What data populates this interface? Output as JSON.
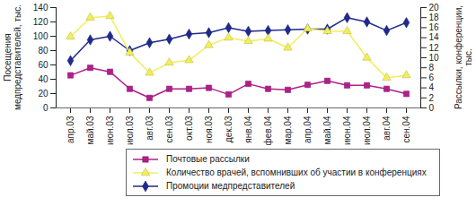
{
  "chart_data": {
    "type": "line",
    "categories": [
      "апр.03",
      "май.03",
      "июн.03",
      "июл.03",
      "авг.03",
      "сен.03",
      "окт.03",
      "ноя.03",
      "дек.03",
      "янв.04",
      "фев.04",
      "мар.04",
      "апр.04",
      "май.04",
      "июн.04",
      "июл.04",
      "авг.04",
      "сен.04"
    ],
    "ylabel": "Посещения медпредставителей, тыс.",
    "y2label": "Рассылки, конференции, тыс.",
    "ylim": [
      0,
      140
    ],
    "yticks": [
      0,
      20,
      40,
      60,
      80,
      100,
      120,
      140
    ],
    "y2lim": [
      0,
      20
    ],
    "y2ticks": [
      0,
      2,
      4,
      6,
      8,
      10,
      12,
      14,
      16,
      18,
      20
    ],
    "legend": "bottom",
    "series": [
      {
        "name": "Почтовые рассылки",
        "color": "#b0208a",
        "marker": "square",
        "axis": "y2",
        "values": [
          6.5,
          8.0,
          7.2,
          3.8,
          2.0,
          3.8,
          3.8,
          4.0,
          2.7,
          4.8,
          3.8,
          3.6,
          4.6,
          5.4,
          4.5,
          4.5,
          3.8,
          2.8
        ]
      },
      {
        "name": "Количество врачей, вспомнивших об участии в конференциях",
        "color": "#f2ee5c",
        "marker": "triangle",
        "axis": "y2",
        "values": [
          14.2,
          18.0,
          18.3,
          11.0,
          7.0,
          9.0,
          9.5,
          12.5,
          14.0,
          13.3,
          13.8,
          12.0,
          15.8,
          15.3,
          15.3,
          10.0,
          6.0,
          6.5
        ]
      },
      {
        "name": "Промоции медпредставителей",
        "color": "#1f2a8c",
        "marker": "diamond",
        "axis": "y",
        "values": [
          66,
          95,
          100,
          80,
          91,
          96,
          103,
          105,
          112,
          107,
          108,
          109,
          110,
          110,
          126,
          120,
          108,
          119
        ]
      }
    ]
  }
}
